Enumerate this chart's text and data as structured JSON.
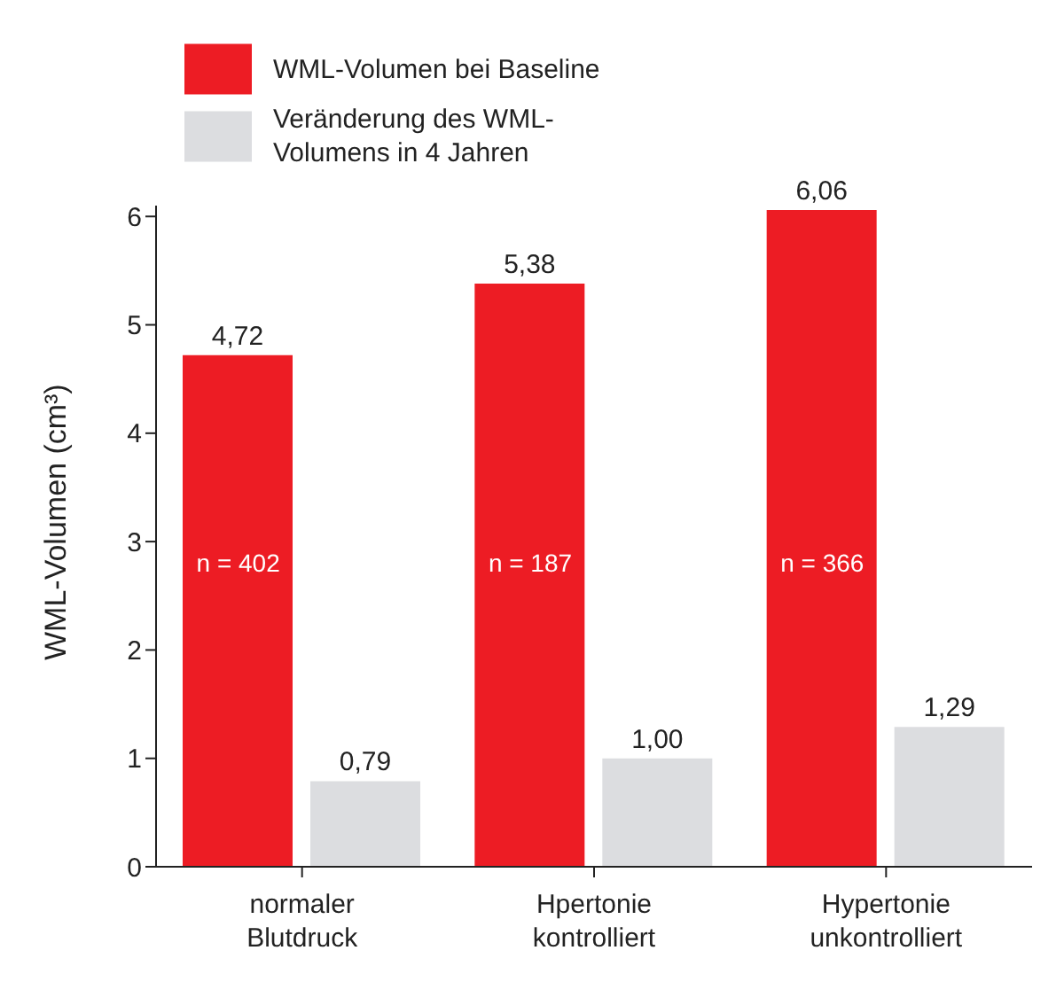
{
  "chart_data": {
    "type": "bar",
    "ylabel": "WML-Volumen (cm³)",
    "categories": [
      "normaler\nBlutdruck",
      "Hpertonie\nkontrolliert",
      "Hypertonie\nunkontrolliert"
    ],
    "series": [
      {
        "name": "WML-Volumen bei Baseline",
        "color": "#ed1c24",
        "values": [
          4.72,
          5.38,
          6.06
        ],
        "value_labels": [
          "4,72",
          "5,38",
          "6,06"
        ]
      },
      {
        "name": "Veränderung des WML-Volumens in 4 Jahren",
        "color": "#dcdde0",
        "values": [
          0.79,
          1.0,
          1.29
        ],
        "value_labels": [
          "0,79",
          "1,00",
          "1,29"
        ]
      }
    ],
    "annotations": [
      "n = 402",
      "n = 187",
      "n = 366"
    ],
    "ylim": [
      0,
      6.1
    ],
    "yticks": [
      0,
      1,
      2,
      3,
      4,
      5,
      6
    ],
    "grid": false,
    "legend": "top"
  }
}
